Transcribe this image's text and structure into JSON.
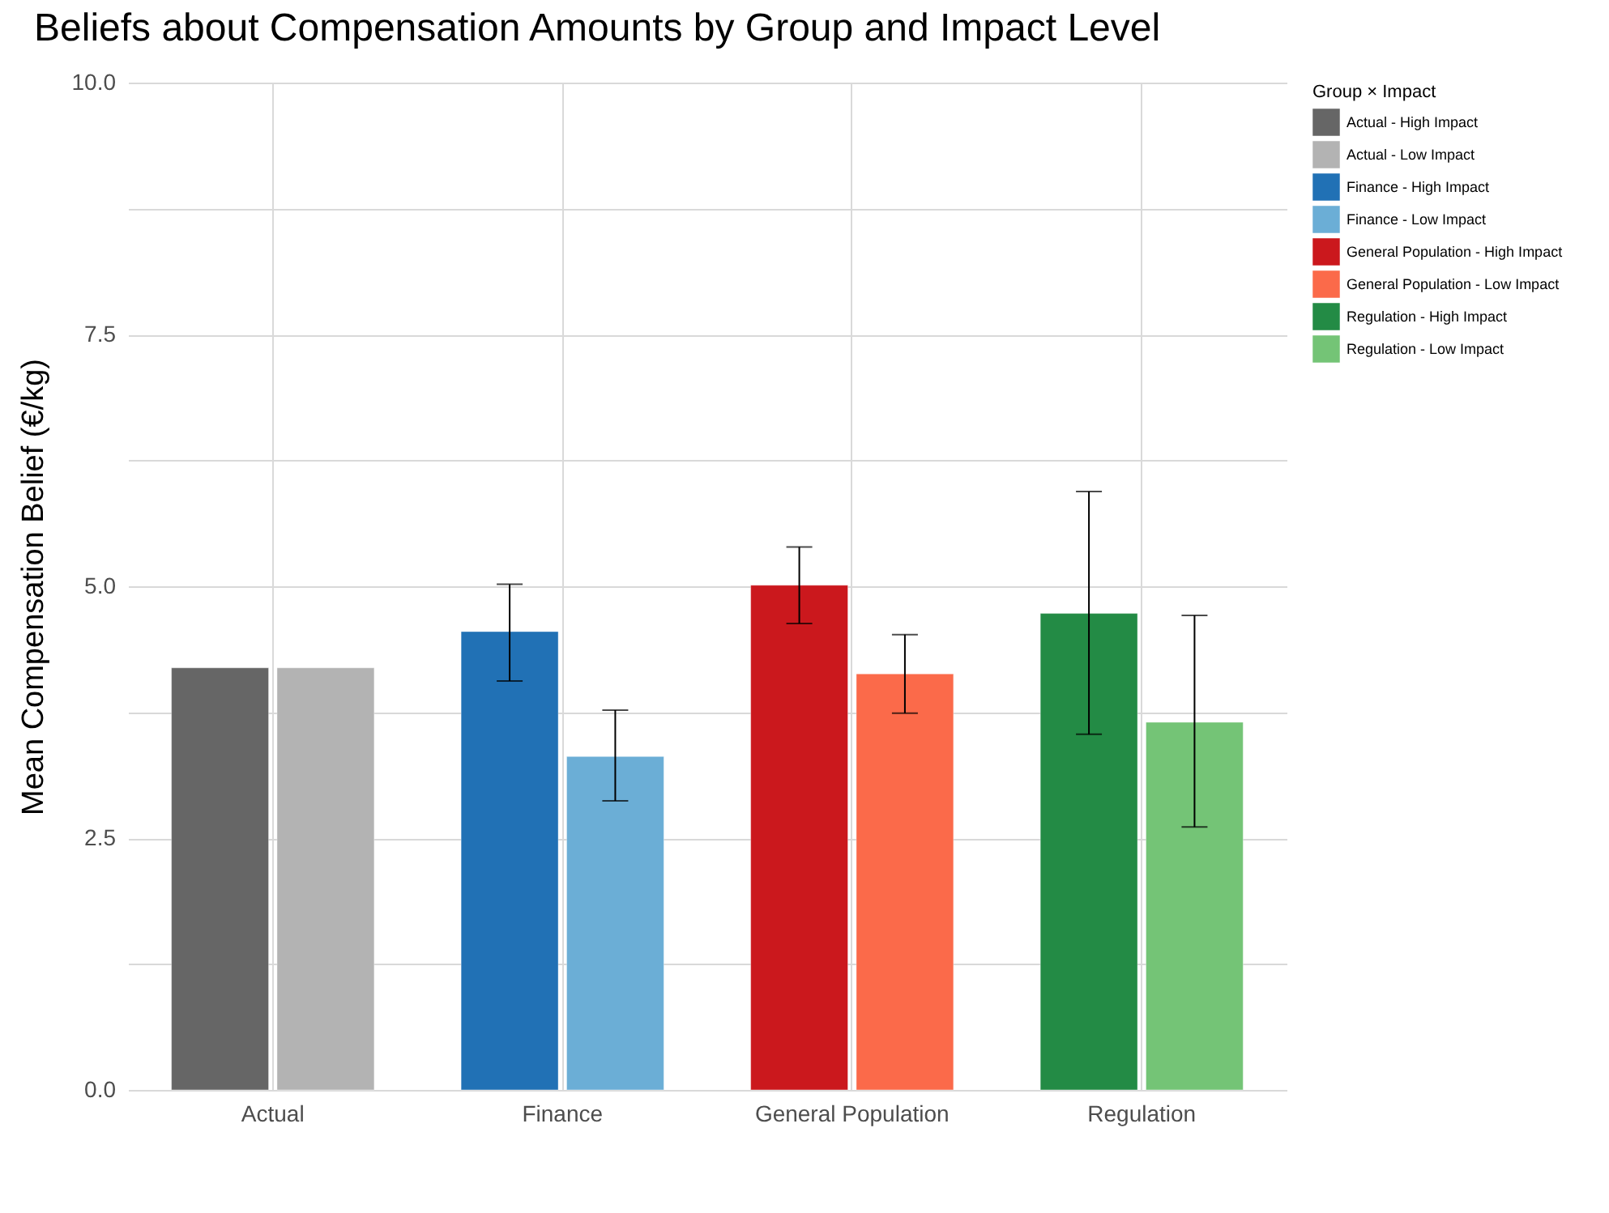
{
  "chart_data": {
    "type": "bar",
    "title": "Beliefs about Compensation Amounts by Group and Impact Level",
    "ylabel": "Mean Compensation Belief (€/kg)",
    "legend_title": "Group × Impact",
    "categories": [
      "Actual",
      "Finance",
      "General Population",
      "Regulation"
    ],
    "series": [
      {
        "name": "Actual - High Impact",
        "color": "#666666",
        "values": [
          4.19,
          null,
          null,
          null
        ]
      },
      {
        "name": "Actual - Low Impact",
        "color": "#b3b3b3",
        "values": [
          4.19,
          null,
          null,
          null
        ]
      },
      {
        "name": "Finance - High Impact",
        "color": "#2171b5",
        "values": [
          null,
          4.55,
          null,
          null
        ],
        "errors": [
          null,
          [
            4.06,
            5.02
          ],
          null,
          null
        ]
      },
      {
        "name": "Finance - Low Impact",
        "color": "#6baed6",
        "values": [
          null,
          3.31,
          null,
          null
        ],
        "errors": [
          null,
          [
            2.87,
            3.77
          ],
          null,
          null
        ]
      },
      {
        "name": "General Population - High Impact",
        "color": "#cb181d",
        "values": [
          null,
          null,
          5.01,
          null
        ],
        "errors": [
          null,
          null,
          [
            4.63,
            5.39
          ],
          null
        ]
      },
      {
        "name": "General Population - Low Impact",
        "color": "#fb6a4a",
        "values": [
          null,
          null,
          4.13,
          null
        ],
        "errors": [
          null,
          null,
          [
            3.74,
            4.52
          ],
          null
        ]
      },
      {
        "name": "Regulation - High Impact",
        "color": "#238b45",
        "values": [
          null,
          null,
          null,
          4.73
        ],
        "errors": [
          null,
          null,
          null,
          [
            3.53,
            5.94
          ]
        ]
      },
      {
        "name": "Regulation - Low Impact",
        "color": "#74c476",
        "values": [
          null,
          null,
          null,
          3.65
        ],
        "errors": [
          null,
          null,
          null,
          [
            2.61,
            4.71
          ]
        ]
      }
    ],
    "ylim": [
      0,
      10
    ],
    "yticks": [
      {
        "value": 0,
        "label": "0.0"
      },
      {
        "value": 1.25,
        "label": null
      },
      2.5,
      {
        "value": 3.75,
        "label": null
      },
      {
        "value": 5,
        "label": "5.0"
      },
      {
        "value": 6.25,
        "label": null
      },
      7.5,
      {
        "value": 8.75,
        "label": null
      },
      {
        "value": 10,
        "label": "10.0"
      }
    ],
    "grid": true,
    "legend": "right"
  }
}
